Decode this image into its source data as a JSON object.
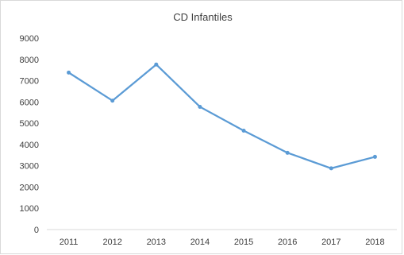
{
  "chart_data": {
    "type": "line",
    "title": "CD Infantiles",
    "xlabel": "",
    "ylabel": "",
    "categories": [
      "2011",
      "2012",
      "2013",
      "2014",
      "2015",
      "2016",
      "2017",
      "2018"
    ],
    "series": [
      {
        "values": [
          7380,
          6060,
          7760,
          5770,
          4650,
          3610,
          2880,
          3420
        ],
        "color": "#5b9bd5"
      }
    ],
    "ylim": [
      0,
      9000
    ],
    "yticks": [
      "0",
      "1000",
      "2000",
      "3000",
      "4000",
      "5000",
      "6000",
      "7000",
      "8000",
      "9000"
    ],
    "grid": false,
    "legend": "none"
  }
}
